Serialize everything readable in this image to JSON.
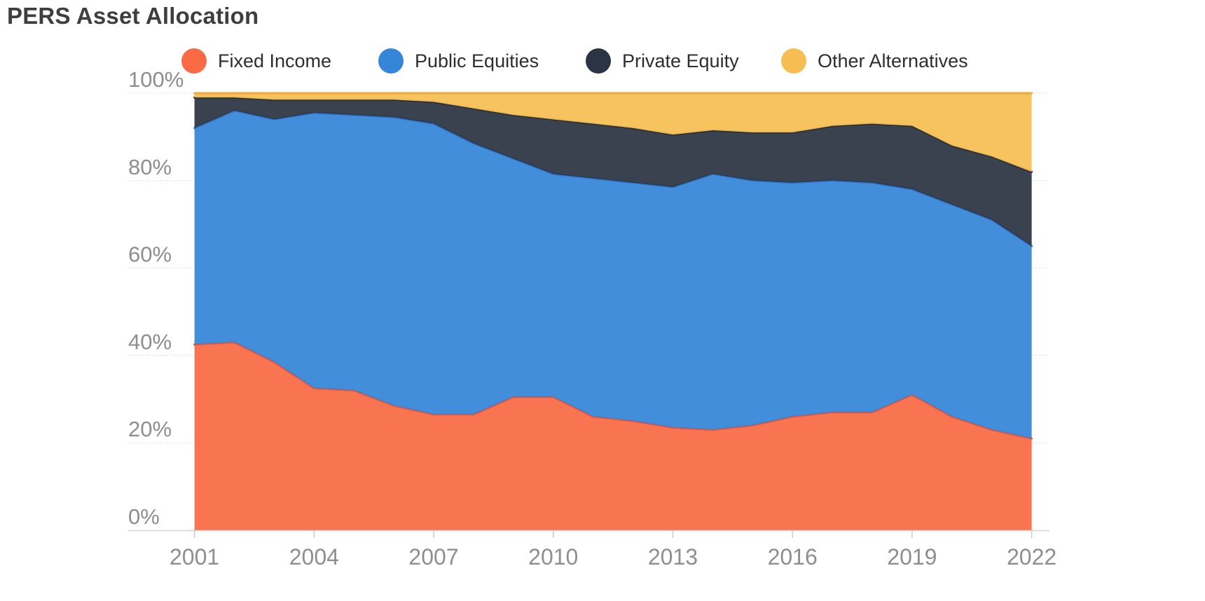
{
  "title": "PERS Asset Allocation",
  "colors": {
    "background": "#FFFFFF",
    "grid": "#DCDCDC",
    "axis_line": "#D4D4D4",
    "tick": "#C9C9C9",
    "axis_label": "#8E8E8E",
    "title_text": "#3E3E3E",
    "legend_text": "#2E2E2E"
  },
  "chart_data": {
    "type": "area",
    "stacked": true,
    "unit": "%",
    "title": "PERS Asset Allocation",
    "xlabel": "",
    "ylabel": "",
    "grid": true,
    "legend_position": "top",
    "x": [
      2001,
      2002,
      2003,
      2004,
      2005,
      2006,
      2007,
      2008,
      2009,
      2010,
      2011,
      2012,
      2013,
      2014,
      2015,
      2016,
      2017,
      2018,
      2019,
      2020,
      2021,
      2022
    ],
    "series": [
      {
        "name": "Fixed Income",
        "color": "#F96A45",
        "line_color": "#F4512B",
        "values": [
          42.5,
          43,
          38.5,
          32.5,
          32,
          28.5,
          26.5,
          26.5,
          30.5,
          30.5,
          26,
          25,
          23.5,
          23,
          24,
          26,
          27,
          27,
          31,
          26,
          23,
          21
        ]
      },
      {
        "name": "Public Equities",
        "color": "#3585D8",
        "line_color": "#2E76CF",
        "values": [
          49.5,
          53,
          55.5,
          63,
          63,
          66,
          66.5,
          62,
          54.5,
          51,
          54.5,
          54.5,
          55,
          58.5,
          56,
          53.5,
          53,
          52.5,
          47,
          48.5,
          48,
          44
        ]
      },
      {
        "name": "Private Equity",
        "color": "#2B3443",
        "line_color": "#232C39",
        "values": [
          7,
          3,
          4.5,
          3,
          3.5,
          4,
          5,
          8,
          10,
          12.5,
          12.5,
          12.5,
          12,
          10,
          11,
          11.5,
          12.5,
          13.5,
          14.5,
          13.5,
          14.5,
          17
        ]
      },
      {
        "name": "Other Alternatives",
        "color": "#F6BE52",
        "line_color": "#F2A73B",
        "values": [
          1,
          1,
          1.5,
          1.5,
          1.5,
          1.5,
          2,
          3.5,
          5,
          6,
          7,
          8,
          9.5,
          8.5,
          9,
          9,
          7.5,
          7,
          7.5,
          12,
          14.5,
          18
        ]
      }
    ],
    "y_axis": {
      "min": 0,
      "max": 100,
      "ticks": [
        0,
        20,
        40,
        60,
        80,
        100
      ],
      "tick_suffix": "%"
    },
    "x_axis": {
      "tick_years": [
        2001,
        2004,
        2007,
        2010,
        2013,
        2016,
        2019,
        2022
      ]
    }
  }
}
